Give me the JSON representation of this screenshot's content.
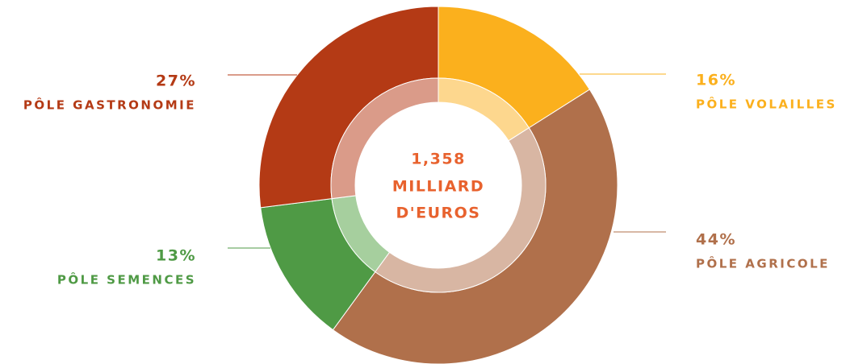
{
  "chart_data": {
    "type": "pie",
    "categories": [
      "PÔLE VOLAILLES",
      "PÔLE AGRICOLE",
      "PÔLE SEMENCES",
      "PÔLE GASTRONOMIE"
    ],
    "values": [
      16,
      44,
      13,
      27
    ],
    "value_labels": [
      "16%",
      "44%",
      "13%",
      "27%"
    ],
    "colors": [
      "#fbb01d",
      "#b0704b",
      "#4f9a45",
      "#b43a15"
    ],
    "inner_colors": [
      "#fdd78e",
      "#d8b6a3",
      "#a6cf9e",
      "#da9b89"
    ],
    "center_text": [
      "1,358",
      "MILLIARD",
      "D'EUROS"
    ]
  }
}
